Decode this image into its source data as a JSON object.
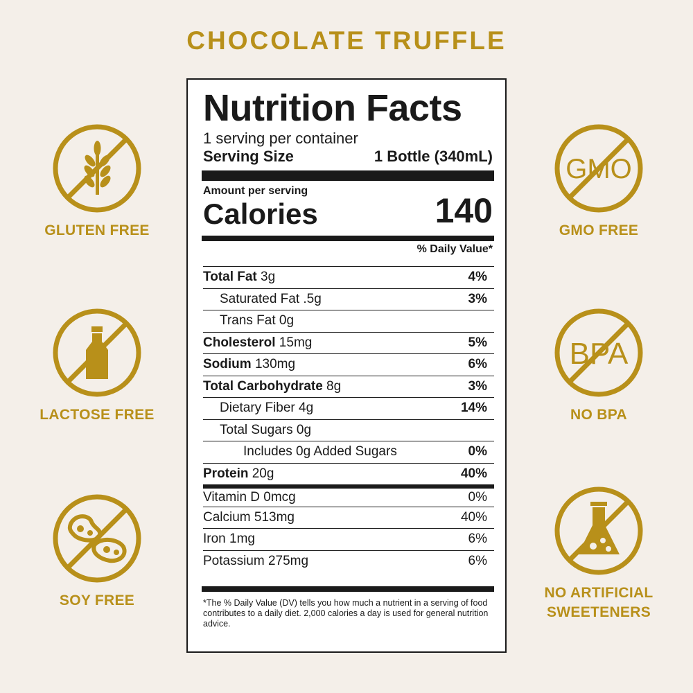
{
  "title": "CHOCOLATE TRUFFLE",
  "badges": {
    "gluten": "GLUTEN FREE",
    "lactose": "LACTOSE FREE",
    "soy": "SOY FREE",
    "gmo": "GMO FREE",
    "bpa": "NO BPA",
    "sweet1": "NO ARTIFICIAL",
    "sweet2": "SWEETENERS",
    "gmo_text": "GMO",
    "bpa_text": "BPA"
  },
  "colors": {
    "gold": "#b8901a",
    "background": "#f4efe9",
    "ink": "#1a1a1a"
  },
  "nutrition": {
    "heading": "Nutrition Facts",
    "servings": "1 serving per container",
    "serving_size_label": "Serving Size",
    "serving_size_value": "1 Bottle (340mL)",
    "amount_per_serving": "Amount per serving",
    "calories_label": "Calories",
    "calories_value": "140",
    "dv_header": "% Daily Value*",
    "rows": [
      {
        "bold": "Total Fat",
        "text": " 3g",
        "pct": "4%"
      },
      {
        "bold": "",
        "text": "Saturated Fat .5g",
        "pct": "3%"
      },
      {
        "bold": "",
        "text": "Trans Fat 0g",
        "pct": ""
      },
      {
        "bold": "Cholesterol",
        "text": " 15mg",
        "pct": "5%"
      },
      {
        "bold": "Sodium",
        "text": " 130mg",
        "pct": "6%"
      },
      {
        "bold": "Total Carbohydrate",
        "text": " 8g",
        "pct": "3%"
      },
      {
        "bold": "",
        "text": "Dietary Fiber 4g",
        "pct": "14%"
      },
      {
        "bold": "",
        "text": "Total Sugars 0g",
        "pct": ""
      },
      {
        "bold": "",
        "text": "Includes 0g Added Sugars",
        "pct": "0%"
      },
      {
        "bold": "Protein",
        "text": " 20g",
        "pct": "40%"
      }
    ],
    "vitamins": [
      {
        "text": "Vitamin D 0mcg",
        "pct": "0%"
      },
      {
        "text": "Calcium 513mg",
        "pct": "40%"
      },
      {
        "text": "Iron 1mg",
        "pct": "6%"
      },
      {
        "text": "Potassium 275mg",
        "pct": "6%"
      }
    ],
    "footnote": "*The % Daily Value (DV) tells you how much a nutrient in a serving of food contributes to a daily diet. 2,000 calories a day is used for general nutrition advice."
  }
}
